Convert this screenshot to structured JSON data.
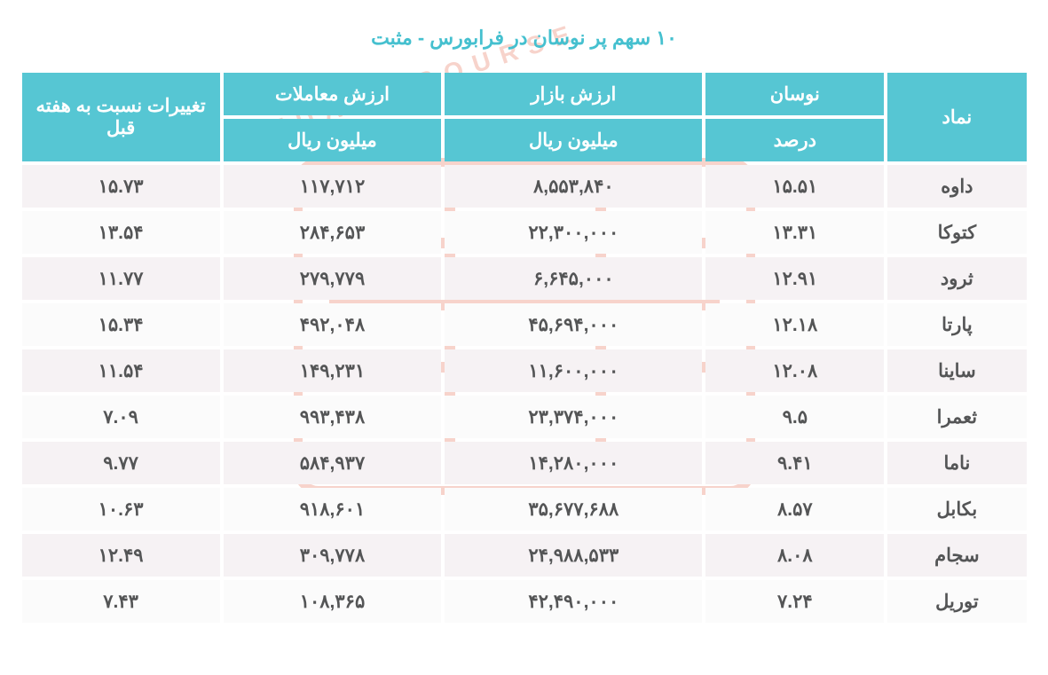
{
  "title": "۱۰ سهم پر نوسان در فرابورس - مثبت",
  "colors": {
    "title": "#45c0cf",
    "header_bg": "#56c6d3",
    "row_even_bg": "#f6f2f4",
    "row_odd_bg": "#fbfbfb",
    "cell_text": "#545556",
    "watermark": "#e9816a"
  },
  "columns": {
    "symbol": "نماد",
    "volatility": "نوسان",
    "volatility_unit": "درصد",
    "market_value": "ارزش بازار",
    "market_value_unit": "میلیون ریال",
    "trade_value": "ارزش معاملات",
    "trade_value_unit": "میلیون ریال",
    "change_vs_prev_week": "تغییرات نسبت به هفته قبل"
  },
  "rows": [
    {
      "symbol": "داوه",
      "volatility": "۱۵.۵۱",
      "market_value": "۸,۵۵۳,۸۴۰",
      "trade_value": "۱۱۷,۷۱۲",
      "change": "۱۵.۷۳"
    },
    {
      "symbol": "کتوکا",
      "volatility": "۱۳.۳۱",
      "market_value": "۲۲,۳۰۰,۰۰۰",
      "trade_value": "۲۸۴,۶۵۳",
      "change": "۱۳.۵۴"
    },
    {
      "symbol": "ثرود",
      "volatility": "۱۲.۹۱",
      "market_value": "۶,۶۴۵,۰۰۰",
      "trade_value": "۲۷۹,۷۷۹",
      "change": "۱۱.۷۷"
    },
    {
      "symbol": "پارتا",
      "volatility": "۱۲.۱۸",
      "market_value": "۴۵,۶۹۴,۰۰۰",
      "trade_value": "۴۹۲,۰۴۸",
      "change": "۱۵.۳۴"
    },
    {
      "symbol": "ساینا",
      "volatility": "۱۲.۰۸",
      "market_value": "۱۱,۶۰۰,۰۰۰",
      "trade_value": "۱۴۹,۲۳۱",
      "change": "۱۱.۵۴"
    },
    {
      "symbol": "ثعمرا",
      "volatility": "۹.۵",
      "market_value": "۲۳,۳۷۴,۰۰۰",
      "trade_value": "۹۹۳,۴۳۸",
      "change": "۷.۰۹"
    },
    {
      "symbol": "ناما",
      "volatility": "۹.۴۱",
      "market_value": "۱۴,۲۸۰,۰۰۰",
      "trade_value": "۵۸۴,۹۳۷",
      "change": "۹.۷۷"
    },
    {
      "symbol": "بکابل",
      "volatility": "۸.۵۷",
      "market_value": "۳۵,۶۷۷,۶۸۸",
      "trade_value": "۹۱۸,۶۰۱",
      "change": "۱۰.۶۳"
    },
    {
      "symbol": "سجام",
      "volatility": "۸.۰۸",
      "market_value": "۲۴,۹۸۸,۵۳۳",
      "trade_value": "۳۰۹,۷۷۸",
      "change": "۱۲.۴۹"
    },
    {
      "symbol": "توریل",
      "volatility": "۷.۲۴",
      "market_value": "۴۲,۴۹۰,۰۰۰",
      "trade_value": "۱۰۸,۳۶۵",
      "change": "۷.۴۳"
    }
  ],
  "watermark_text": "SEDAYE BOURSE"
}
